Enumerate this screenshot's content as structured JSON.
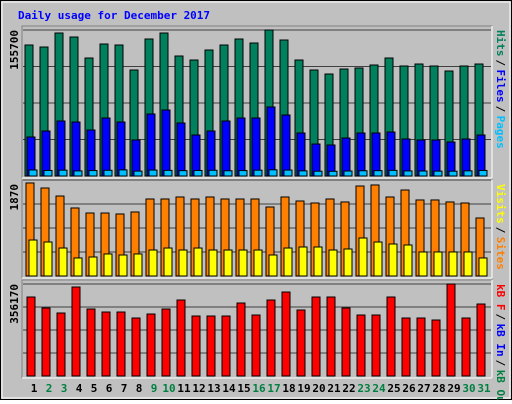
{
  "chart_data": {
    "type": "bar",
    "title": "Daily usage for December 2017",
    "categories": [
      "1",
      "2",
      "3",
      "4",
      "5",
      "6",
      "7",
      "8",
      "9",
      "10",
      "11",
      "12",
      "13",
      "14",
      "15",
      "16",
      "17",
      "18",
      "19",
      "20",
      "21",
      "22",
      "23",
      "24",
      "25",
      "26",
      "27",
      "28",
      "29",
      "30",
      "31"
    ],
    "weekend_color": "#008040",
    "weekday_color": "#000000",
    "weekends": [
      false,
      true,
      true,
      false,
      false,
      false,
      false,
      false,
      true,
      true,
      false,
      false,
      false,
      false,
      false,
      true,
      true,
      false,
      false,
      false,
      false,
      false,
      true,
      true,
      false,
      false,
      false,
      false,
      false,
      true,
      true
    ],
    "panels": [
      {
        "ylim": [
          0,
          155700
        ],
        "yticks": [
          155700
        ],
        "series": [
          {
            "name": "Hits",
            "color": "#00805c",
            "values": [
              139700,
              137560,
              152500,
              148230,
              125840,
              140770,
              139700,
              113040,
              146100,
              152500,
              127970,
              123700,
              134370,
              139700,
              146100,
              141830,
              155700,
              145030,
              123700,
              113040,
              108770,
              114100,
              115170,
              118370,
              125840,
              117300,
              119440,
              117300,
              111970,
              117300,
              119440
            ]
          },
          {
            "name": "Files",
            "color": "#0000ff",
            "values": [
              41580,
              47980,
              58650,
              57590,
              49060,
              61850,
              57590,
              38390,
              66120,
              70380,
              56520,
              43720,
              47990,
              58650,
              61850,
              61850,
              73580,
              65050,
              45860,
              34130,
              33060,
              40520,
              45860,
              45860,
              46920,
              39460,
              38390,
              38390,
              36260,
              39460,
              43720
            ]
          },
          {
            "name": "Pages",
            "color": "#00c0ff",
            "values": [
              6400,
              5900,
              6200,
              5400,
              5800,
              6100,
              6500,
              5200,
              6300,
              6000,
              5700,
              5900,
              6100,
              5600,
              5800,
              6200,
              6600,
              6300,
              5500,
              5100,
              5000,
              5300,
              5600,
              5700,
              6000,
              5400,
              5300,
              5200,
              5100,
              5500,
              5900
            ]
          }
        ]
      },
      {
        "ylim": [
          0,
          1870
        ],
        "yticks": [
          1870
        ],
        "series": [
          {
            "name": "Visits",
            "color": "#ff8000",
            "text_color": "#ffff00",
            "values": [
              1812,
              1714,
              1558,
              1325,
              1227,
              1227,
              1208,
              1247,
              1500,
              1500,
              1539,
              1500,
              1539,
              1500,
              1500,
              1500,
              1344,
              1539,
              1461,
              1422,
              1500,
              1442,
              1753,
              1773,
              1539,
              1675,
              1481,
              1481,
              1442,
              1422,
              1130
            ]
          },
          {
            "name": "Sites",
            "color": "#ffff00",
            "text_color": "#ff8000",
            "values": [
              701,
              662,
              545,
              351,
              370,
              429,
              409,
              429,
              506,
              545,
              506,
              545,
              506,
              506,
              506,
              506,
              409,
              545,
              565,
              565,
              506,
              526,
              740,
              662,
              623,
              604,
              468,
              468,
              468,
              468,
              351
            ]
          }
        ]
      },
      {
        "ylim": [
          0,
          356170
        ],
        "yticks": [
          356170
        ],
        "series": [
          {
            "name": "kB F",
            "color": "#ff0000",
            "values": [
              305800,
              263230,
              243870,
              344520,
              259360,
              247740,
              247740,
              224520,
              240000,
              259360,
              294200,
              232260,
              232260,
              232260,
              282580,
              236130,
              294200,
              325160,
              255490,
              305800,
              305800,
              263230,
              236130,
              236130,
              305800,
              224520,
              224520,
              216780,
              356170,
              224520,
              278710
            ]
          }
        ],
        "legend": [
          {
            "name": "kB In",
            "color": "#0000ff"
          },
          {
            "name": "kB Out",
            "color": "#008040"
          }
        ]
      }
    ]
  }
}
